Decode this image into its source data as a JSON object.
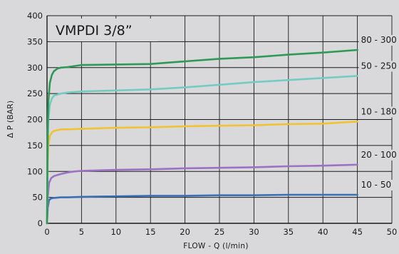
{
  "chart_data": {
    "type": "line",
    "title": "VMPDI 3/8”",
    "xlabel": "FLOW - Q (l/min)",
    "ylabel": "Δ P (BAR)",
    "xlim": [
      0,
      50
    ],
    "ylim": [
      0,
      400
    ],
    "xticks": [
      "0",
      "5",
      "10",
      "15",
      "20",
      "25",
      "30",
      "35",
      "40",
      "45",
      "50"
    ],
    "yticks": [
      "0",
      "50",
      "100",
      "150",
      "200",
      "250",
      "300",
      "350",
      "400"
    ],
    "grid": true,
    "series": [
      {
        "name": "10 - 50",
        "color": "#3a6fb5",
        "x": [
          0,
          0.1,
          0.3,
          0.6,
          1,
          2,
          3,
          5,
          10,
          15,
          20,
          25,
          30,
          35,
          40,
          45
        ],
        "y": [
          0,
          30,
          45,
          48,
          49,
          50,
          50,
          51,
          52,
          53,
          53,
          54,
          54,
          55,
          55,
          55
        ]
      },
      {
        "name": "20 - 100",
        "color": "#9b72c4",
        "x": [
          0,
          0.1,
          0.3,
          0.6,
          1,
          2,
          3,
          4,
          5,
          10,
          15,
          20,
          25,
          30,
          35,
          40,
          45
        ],
        "y": [
          0,
          50,
          78,
          87,
          91,
          95,
          98,
          100,
          101,
          103,
          104,
          106,
          107,
          108,
          110,
          111,
          113
        ]
      },
      {
        "name": "10 - 180",
        "color": "#f1c232",
        "x": [
          0,
          0.1,
          0.2,
          0.4,
          0.7,
          1,
          2,
          3,
          5,
          10,
          15,
          20,
          25,
          30,
          35,
          40,
          45
        ],
        "y": [
          0,
          120,
          150,
          168,
          175,
          178,
          181,
          181,
          182,
          184,
          185,
          187,
          188,
          189,
          191,
          192,
          196
        ]
      },
      {
        "name": "50 - 250",
        "color": "#74ccc0",
        "x": [
          0,
          0.1,
          0.2,
          0.4,
          0.7,
          1,
          2,
          3,
          5,
          10,
          15,
          20,
          25,
          30,
          35,
          40,
          45
        ],
        "y": [
          0,
          150,
          200,
          228,
          240,
          246,
          250,
          252,
          254,
          256,
          258,
          262,
          267,
          272,
          276,
          280,
          284
        ]
      },
      {
        "name": "80 - 300",
        "color": "#2f9a57",
        "x": [
          0,
          0.1,
          0.2,
          0.4,
          0.7,
          1,
          1.5,
          2,
          3,
          5,
          10,
          15,
          20,
          25,
          30,
          35,
          40,
          45
        ],
        "y": [
          0,
          180,
          235,
          270,
          286,
          293,
          298,
          300,
          301,
          305,
          306,
          307,
          312,
          317,
          320,
          325,
          329,
          334
        ]
      }
    ]
  }
}
